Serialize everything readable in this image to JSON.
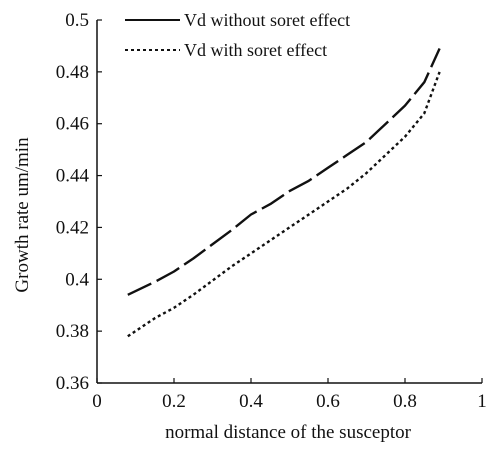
{
  "chart_data": {
    "type": "line",
    "title": "",
    "xlabel": "normal distance of the susceptor",
    "ylabel": "Growth rate um/min",
    "xlim": [
      0,
      1
    ],
    "ylim": [
      0.36,
      0.5
    ],
    "x_ticks": [
      {
        "value": 0,
        "label": "0"
      },
      {
        "value": 0.2,
        "label": "0.2"
      },
      {
        "value": 0.4,
        "label": "0.4"
      },
      {
        "value": 0.6,
        "label": "0.6"
      },
      {
        "value": 0.8,
        "label": "0.8"
      },
      {
        "value": 1,
        "label": "1"
      }
    ],
    "y_ticks": [
      {
        "value": 0.36,
        "label": "0.36"
      },
      {
        "value": 0.38,
        "label": "0.38"
      },
      {
        "value": 0.4,
        "label": "0.4"
      },
      {
        "value": 0.42,
        "label": "0.42"
      },
      {
        "value": 0.44,
        "label": "0.44"
      },
      {
        "value": 0.46,
        "label": "0.46"
      },
      {
        "value": 0.48,
        "label": "0.48"
      },
      {
        "value": 0.5,
        "label": "0.5"
      }
    ],
    "grid": false,
    "legend": "top-center",
    "series": [
      {
        "name": "Vd without soret effect",
        "style": "dashed-long",
        "color": "#111111",
        "points": [
          [
            0.08,
            0.394
          ],
          [
            0.15,
            0.399
          ],
          [
            0.2,
            0.403
          ],
          [
            0.25,
            0.408
          ],
          [
            0.35,
            0.419
          ],
          [
            0.4,
            0.425
          ],
          [
            0.45,
            0.429
          ],
          [
            0.5,
            0.434
          ],
          [
            0.55,
            0.438
          ],
          [
            0.6,
            0.443
          ],
          [
            0.65,
            0.448
          ],
          [
            0.7,
            0.453
          ],
          [
            0.75,
            0.46
          ],
          [
            0.8,
            0.467
          ],
          [
            0.85,
            0.476
          ],
          [
            0.89,
            0.489
          ]
        ]
      },
      {
        "name": "Vd with soret effect",
        "style": "dotted",
        "color": "#111111",
        "points": [
          [
            0.08,
            0.378
          ],
          [
            0.15,
            0.385
          ],
          [
            0.2,
            0.389
          ],
          [
            0.25,
            0.394
          ],
          [
            0.35,
            0.405
          ],
          [
            0.4,
            0.41
          ],
          [
            0.45,
            0.415
          ],
          [
            0.5,
            0.42
          ],
          [
            0.55,
            0.425
          ],
          [
            0.6,
            0.43
          ],
          [
            0.65,
            0.435
          ],
          [
            0.7,
            0.441
          ],
          [
            0.75,
            0.448
          ],
          [
            0.8,
            0.455
          ],
          [
            0.85,
            0.464
          ],
          [
            0.89,
            0.48
          ]
        ]
      }
    ]
  }
}
